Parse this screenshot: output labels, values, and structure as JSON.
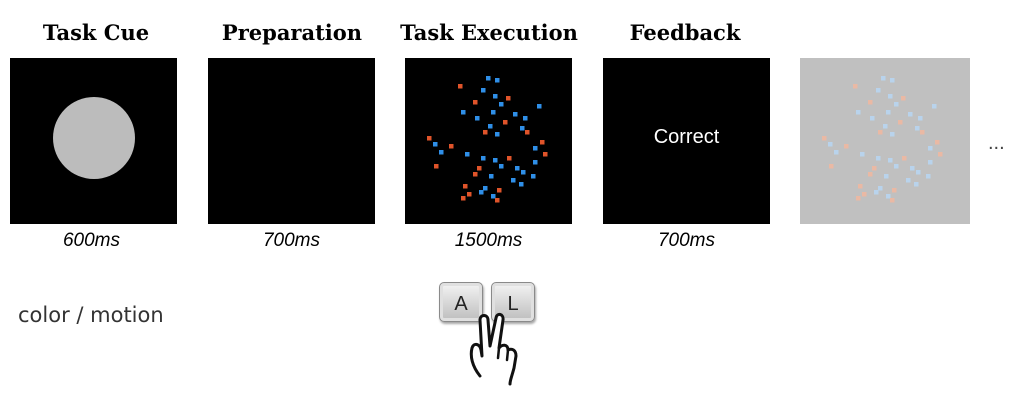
{
  "stages": [
    {
      "title": "Task Cue",
      "duration": "600ms"
    },
    {
      "title": "Preparation",
      "duration": "700ms"
    },
    {
      "title": "Task Execution",
      "duration": "1500ms"
    },
    {
      "title": "Feedback",
      "duration": "700ms"
    }
  ],
  "feedback_text": "Correct",
  "ellipsis": "...",
  "cue_label": "color / motion",
  "keys": [
    "A",
    "L"
  ],
  "colors": {
    "background_panel": "#000000",
    "cue_circle": "#bcbcbc",
    "dot_blue": "#2f8fe8",
    "dot_orange": "#e0542a",
    "faded_panel": "#c0c0c0",
    "faded_dot_blue": "#b9d3ec",
    "faded_dot_orange": "#eab9a4"
  },
  "icons": [
    "hand-pressing-icon"
  ]
}
